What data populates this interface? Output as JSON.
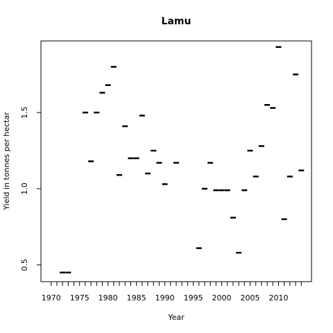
{
  "chart_data": {
    "type": "scatter",
    "marker": "dash",
    "title": "Lamu",
    "xlabel": "Year",
    "ylabel": "Yield in tonnes per hectar",
    "xlim": [
      1968.2,
      2015.8
    ],
    "ylim": [
      0.39,
      1.97
    ],
    "xticks": [
      1970,
      1975,
      1980,
      1985,
      1990,
      1995,
      2000,
      2005,
      2010
    ],
    "xticks_minor_step": 1,
    "xticks_minor_range": [
      1970,
      2014
    ],
    "yticks": [
      0.5,
      1.0,
      1.5
    ],
    "grid": false,
    "legend": "none",
    "colors": {
      "marker": "#000000",
      "axis": "#000000",
      "background": "#ffffff"
    },
    "points": [
      {
        "x": 1972,
        "y": 0.45
      },
      {
        "x": 1973,
        "y": 0.45
      },
      {
        "x": 1976,
        "y": 1.5
      },
      {
        "x": 1977,
        "y": 1.18
      },
      {
        "x": 1978,
        "y": 1.5
      },
      {
        "x": 1979,
        "y": 1.63
      },
      {
        "x": 1980,
        "y": 1.68
      },
      {
        "x": 1981,
        "y": 1.8
      },
      {
        "x": 1982,
        "y": 1.09
      },
      {
        "x": 1983,
        "y": 1.41
      },
      {
        "x": 1984,
        "y": 1.2
      },
      {
        "x": 1985,
        "y": 1.2
      },
      {
        "x": 1986,
        "y": 1.48
      },
      {
        "x": 1987,
        "y": 1.1
      },
      {
        "x": 1988,
        "y": 1.25
      },
      {
        "x": 1989,
        "y": 1.17
      },
      {
        "x": 1990,
        "y": 1.03
      },
      {
        "x": 1992,
        "y": 1.17
      },
      {
        "x": 1996,
        "y": 0.61
      },
      {
        "x": 1997,
        "y": 1.0
      },
      {
        "x": 1998,
        "y": 1.17
      },
      {
        "x": 1999,
        "y": 0.99
      },
      {
        "x": 2000,
        "y": 0.99
      },
      {
        "x": 2001,
        "y": 0.99
      },
      {
        "x": 2002,
        "y": 0.81
      },
      {
        "x": 2003,
        "y": 0.58
      },
      {
        "x": 2004,
        "y": 0.99
      },
      {
        "x": 2005,
        "y": 1.25
      },
      {
        "x": 2006,
        "y": 1.08
      },
      {
        "x": 2007,
        "y": 1.28
      },
      {
        "x": 2008,
        "y": 1.55
      },
      {
        "x": 2009,
        "y": 1.53
      },
      {
        "x": 2010,
        "y": 1.93
      },
      {
        "x": 2011,
        "y": 0.8
      },
      {
        "x": 2012,
        "y": 1.08
      },
      {
        "x": 2013,
        "y": 1.75
      },
      {
        "x": 2014,
        "y": 1.12
      }
    ]
  }
}
